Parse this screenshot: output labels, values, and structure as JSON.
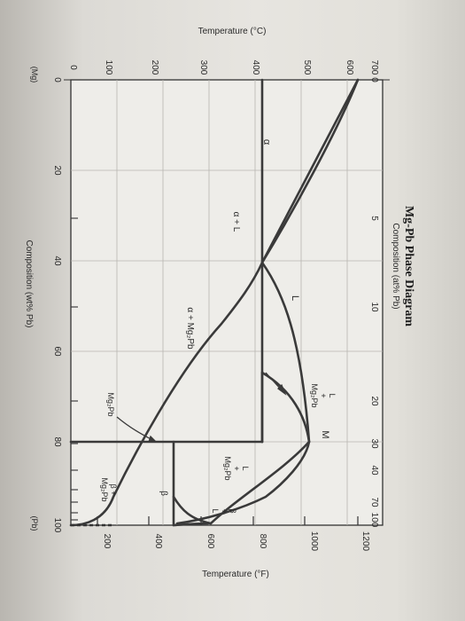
{
  "diagram": {
    "title": "Mg-Pb Phase Diagram",
    "subtitle": "Composition (at% Pb)",
    "x_axis_label": "Composition (wt% Pb)",
    "y_axis_left_label": "Temperature (°C)",
    "y_axis_right_label": "Temperature (°F)",
    "x_end_labels": {
      "left": "(Mg)",
      "right": "(Pb)"
    },
    "x_ticks_wt": [
      "0",
      "20",
      "40",
      "60",
      "80",
      "100"
    ],
    "x_ticks_at": [
      "0",
      "5",
      "10",
      "20",
      "30",
      "40",
      "70",
      "100"
    ],
    "y_ticks_c": [
      "0",
      "100",
      "200",
      "300",
      "400",
      "500",
      "600",
      "700"
    ],
    "y_ticks_f": [
      "200",
      "400",
      "600",
      "800",
      "1000",
      "1200"
    ],
    "regions": {
      "alpha": "α",
      "alpha_l": "α + L",
      "l": "L",
      "alpha_mg2pb": "α + Mg₂Pb",
      "l_mg2pb_1": "L\n+\nMg₂Pb",
      "m": "M",
      "l_mg2pb_2": "L\n+\nMg₂Pb",
      "beta_l": "β\n+\nL",
      "mg2pb": "Mg₂Pb",
      "beta_mg2pb": "β +\nMg₂Pb",
      "beta": "β"
    }
  }
}
